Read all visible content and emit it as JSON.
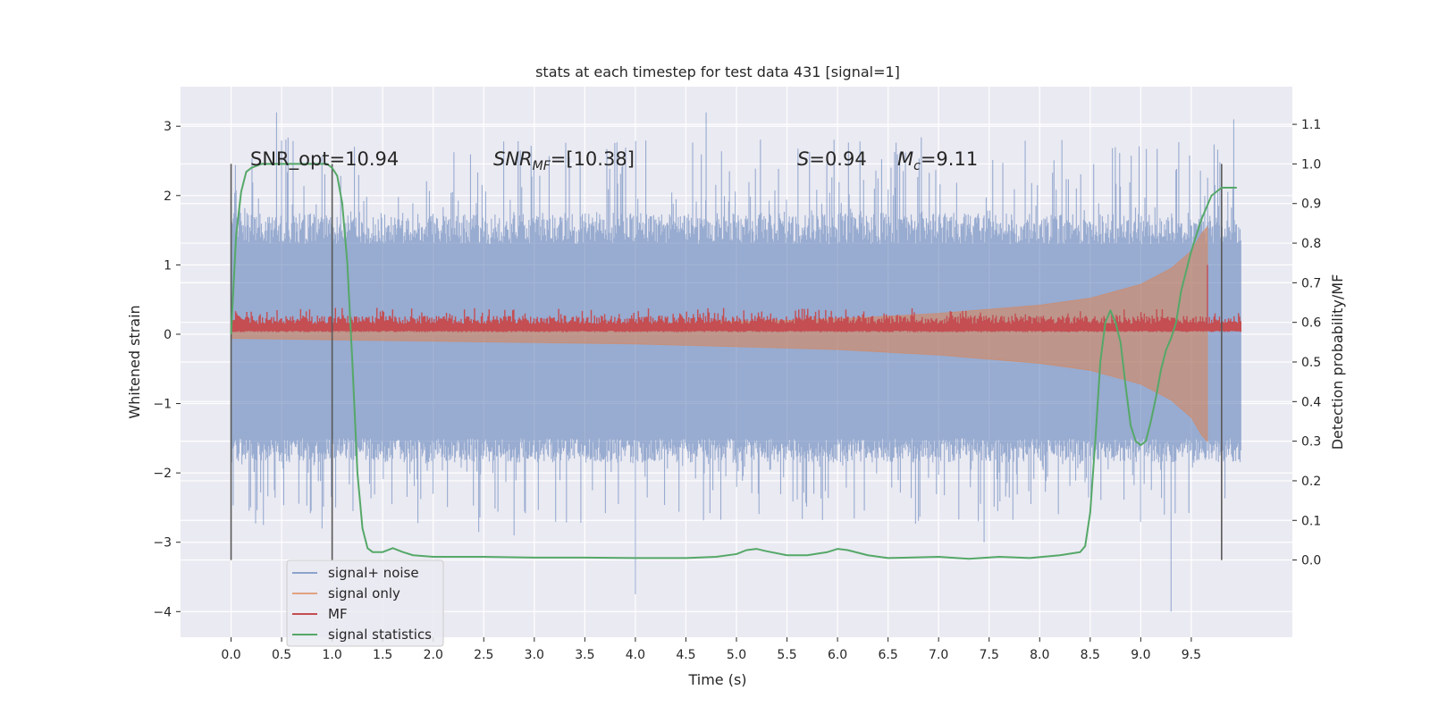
{
  "chart_data": {
    "type": "line",
    "title": "stats at each timestep for test data 431 [signal=1]",
    "xlabel": "Time (s)",
    "ylabel": "Whitened strain",
    "y2label": "Detection probability/MF",
    "xlim": [
      -0.5,
      10.5
    ],
    "ylim": [
      -4.37,
      3.57
    ],
    "y2lim": [
      -0.195,
      1.195
    ],
    "x_ticks": [
      0.0,
      0.5,
      1.0,
      1.5,
      2.0,
      2.5,
      3.0,
      3.5,
      4.0,
      4.5,
      5.0,
      5.5,
      6.0,
      6.5,
      7.0,
      7.5,
      8.0,
      8.5,
      9.0,
      9.5
    ],
    "x_tick_labels": [
      "0.0",
      "0.5",
      "1.0",
      "1.5",
      "2.0",
      "2.5",
      "3.0",
      "3.5",
      "4.0",
      "4.5",
      "5.0",
      "5.5",
      "6.0",
      "6.5",
      "7.0",
      "7.5",
      "8.0",
      "8.5",
      "9.0",
      "9.5"
    ],
    "y_ticks": [
      3,
      2,
      1,
      0,
      -1,
      -2,
      -3,
      -4
    ],
    "y_tick_labels": [
      "3",
      "2",
      "1",
      "0",
      "−1",
      "−2",
      "−3",
      "−4"
    ],
    "y2_ticks": [
      1.1,
      1.0,
      0.9,
      0.8,
      0.7,
      0.6,
      0.5,
      0.4,
      0.3,
      0.2,
      0.1,
      0.0
    ],
    "y2_tick_labels": [
      "1.1",
      "1.0",
      "0.9",
      "0.8",
      "0.7",
      "0.6",
      "0.5",
      "0.4",
      "0.3",
      "0.2",
      "0.1",
      "0.0"
    ],
    "grid": true,
    "legend_position": "bottom-left",
    "annotations": {
      "snr_opt": "SNR_opt=10.94",
      "snr_mf_sym": "SNR",
      "snr_mf_sub": "MF",
      "snr_mf_val": "=[10.38]",
      "s_sym": "S",
      "s_val": "=0.94",
      "mc_sym": "M",
      "mc_sub": "c",
      "mc_val": "=9.11"
    },
    "vlines": [
      {
        "x": 0.0,
        "y2_range": [
          0.0,
          1.0
        ]
      },
      {
        "x": 1.0,
        "y2_range": [
          0.0,
          1.0
        ]
      },
      {
        "x": 9.8,
        "y2_range": [
          0.0,
          1.0
        ]
      }
    ],
    "series": [
      {
        "name": "signal+ noise",
        "color": "#4c72b0",
        "axis": "left",
        "x_range": [
          0.0,
          9.99
        ],
        "band_low": -1.5,
        "band_high": 1.3,
        "spike_max": 3.2,
        "spike_min": -4.0,
        "notable_spikes": [
          [
            0.45,
            3.2
          ],
          [
            4.7,
            3.2
          ],
          [
            9.92,
            3.1
          ],
          [
            4.0,
            -3.75
          ],
          [
            9.3,
            -4.0
          ],
          [
            0.32,
            -2.75
          ],
          [
            0.9,
            -2.8
          ],
          [
            2.45,
            -2.85
          ],
          [
            2.8,
            -2.9
          ],
          [
            7.45,
            -3.0
          ]
        ]
      },
      {
        "name": "signal only",
        "color": "#dd8452",
        "axis": "left",
        "envelope": [
          [
            0.0,
            0.06
          ],
          [
            2.0,
            0.1
          ],
          [
            4.0,
            0.14
          ],
          [
            6.0,
            0.22
          ],
          [
            7.0,
            0.3
          ],
          [
            8.0,
            0.42
          ],
          [
            8.5,
            0.52
          ],
          [
            9.0,
            0.72
          ],
          [
            9.3,
            0.95
          ],
          [
            9.5,
            1.2
          ],
          [
            9.6,
            1.45
          ],
          [
            9.66,
            1.55
          ]
        ]
      },
      {
        "name": "MF",
        "color": "#c44e52",
        "axis": "left",
        "x_range": [
          0.0,
          9.99
        ],
        "base": 0.05,
        "peak_x": 9.66,
        "peak_y": 1.0
      },
      {
        "name": "signal statistics",
        "color": "#55a868",
        "axis": "right",
        "x": [
          0.0,
          0.05,
          0.1,
          0.15,
          0.2,
          0.3,
          0.5,
          0.7,
          0.85,
          0.95,
          1.0,
          1.05,
          1.1,
          1.15,
          1.2,
          1.25,
          1.3,
          1.35,
          1.4,
          1.5,
          1.6,
          1.7,
          1.8,
          2.0,
          2.5,
          3.0,
          3.5,
          4.0,
          4.5,
          4.8,
          5.0,
          5.1,
          5.2,
          5.3,
          5.5,
          5.7,
          5.9,
          6.0,
          6.1,
          6.3,
          6.5,
          7.0,
          7.3,
          7.6,
          7.9,
          8.2,
          8.4,
          8.45,
          8.5,
          8.55,
          8.6,
          8.65,
          8.7,
          8.75,
          8.8,
          8.85,
          8.9,
          8.95,
          9.0,
          9.05,
          9.1,
          9.15,
          9.2,
          9.25,
          9.3,
          9.35,
          9.4,
          9.5,
          9.6,
          9.7,
          9.8,
          9.9,
          9.95
        ],
        "y": [
          0.57,
          0.82,
          0.93,
          0.98,
          0.99,
          1.0,
          1.0,
          1.0,
          1.0,
          1.0,
          0.99,
          0.97,
          0.9,
          0.75,
          0.5,
          0.22,
          0.08,
          0.03,
          0.02,
          0.02,
          0.03,
          0.02,
          0.012,
          0.008,
          0.008,
          0.006,
          0.006,
          0.005,
          0.005,
          0.008,
          0.015,
          0.025,
          0.028,
          0.022,
          0.012,
          0.012,
          0.02,
          0.028,
          0.025,
          0.012,
          0.005,
          0.008,
          0.003,
          0.008,
          0.005,
          0.012,
          0.02,
          0.035,
          0.12,
          0.3,
          0.5,
          0.6,
          0.63,
          0.6,
          0.55,
          0.44,
          0.34,
          0.3,
          0.29,
          0.3,
          0.35,
          0.41,
          0.48,
          0.53,
          0.56,
          0.6,
          0.68,
          0.78,
          0.86,
          0.92,
          0.94,
          0.94,
          0.94
        ]
      }
    ]
  }
}
